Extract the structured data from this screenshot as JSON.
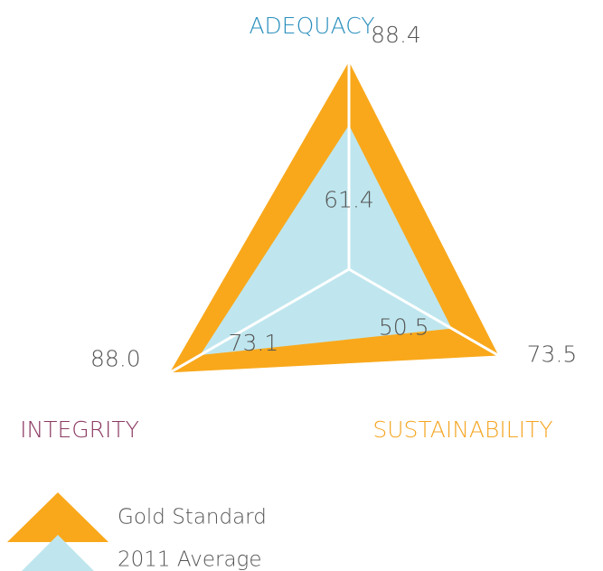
{
  "chart_data": {
    "type": "radar",
    "axes": [
      "ADEQUACY",
      "SUSTAINABILITY",
      "INTEGRITY"
    ],
    "axis_colors": [
      "#2a8fbd",
      "#f5a623",
      "#8b3a62"
    ],
    "rlim": [
      0,
      100
    ],
    "series": [
      {
        "name": "Gold Standard",
        "color": "#f9a81b",
        "values": [
          88.4,
          73.5,
          88.0
        ],
        "value_labels": [
          "88.4",
          "73.5",
          "88.0"
        ]
      },
      {
        "name": "2011 Average",
        "color": "#bfe6ee",
        "values": [
          61.4,
          50.5,
          73.1
        ]
      }
    ]
  }
}
